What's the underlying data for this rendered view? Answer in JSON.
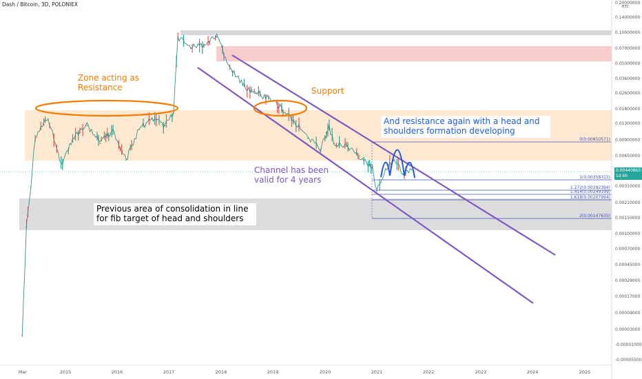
{
  "header": {
    "title": "Dash / Bitcoin, 3D, POLONIEX",
    "currency": "BTC"
  },
  "price_flag": {
    "price": "0.00440865",
    "countdown": "1d 6h",
    "color": "#26a69a"
  },
  "colors": {
    "channel": "#7e57c2",
    "ellipse": "#f57c00",
    "head_shoulders": "#1e5bd8",
    "fib_line": "#3f51b5",
    "resistance_zone": "#fde9d2",
    "consolidation_zone": "#dcdcdf",
    "top_zone": "#f9cccc",
    "top_band": "#d8d8dc",
    "candle_up": "#26a69a",
    "candle_down": "#ef5350"
  },
  "annotations": {
    "zone_resistance": "Zone acting as\nResistance",
    "support": "Support",
    "channel": "Channel has been\nvalid for 4 years",
    "head_shoulders": "And resistance again with a head and\nshoulders formation developing",
    "consolidation": "Previous area of consolidation in line\nfor fib target of head and shoulders"
  },
  "fib_levels": [
    {
      "label": "0(0.00850571)"
    },
    {
      "label": "1(0.00358315)"
    },
    {
      "label": "1.272(0.00282394)"
    },
    {
      "label": "1.414(0.00249199)"
    },
    {
      "label": "1.618(0.00207994)"
    },
    {
      "label": "2(0.00147635)"
    }
  ],
  "chart_data": {
    "type": "line",
    "title": "Dash / Bitcoin, 3D, POLONIEX",
    "scale": "log",
    "y_axis_labels": [
      "0.20000000",
      "0.14000000",
      "0.10000000",
      "0.07000000",
      "0.05000000",
      "0.03600000",
      "0.02600000",
      "0.01800000",
      "0.01300000",
      "0.00900000",
      "0.00650000",
      "0.00440865",
      "0.00310000",
      "0.00210000",
      "0.00150000",
      "0.00100000",
      "0.00070000",
      "0.00045000",
      "0.00029000",
      "0.00017000",
      "0.00009000",
      "0.00003000",
      "-0.00001000",
      "-0.00005500"
    ],
    "x_axis_labels": [
      "Mar",
      "2015",
      "2016",
      "2017",
      "2018",
      "2019",
      "2020",
      "2021",
      "2022",
      "2023",
      "2024",
      "2025"
    ],
    "xlim": [
      "2014-03",
      "2025-12"
    ],
    "series": [
      {
        "x": [
          "2014-03",
          "2014-04",
          "2014-05",
          "2014-06",
          "2014-09",
          "2014-12",
          "2015-03",
          "2015-06",
          "2015-09",
          "2015-12",
          "2016-03",
          "2016-06",
          "2016-09",
          "2016-12",
          "2017-02",
          "2017-03",
          "2017-06",
          "2017-09",
          "2017-12",
          "2018-03",
          "2018-06",
          "2018-09",
          "2018-12",
          "2019-03",
          "2019-06",
          "2019-09",
          "2019-12",
          "2020-02",
          "2020-03",
          "2020-06",
          "2020-09",
          "2020-12",
          "2021-01",
          "2021-03",
          "2021-05",
          "2021-07",
          "2021-09"
        ],
        "values": [
          0.0001,
          0.0012,
          0.003,
          0.0095,
          0.014,
          0.005,
          0.009,
          0.012,
          0.008,
          0.011,
          0.0055,
          0.011,
          0.014,
          0.012,
          0.016,
          0.09,
          0.07,
          0.075,
          0.09,
          0.045,
          0.03,
          0.025,
          0.022,
          0.018,
          0.013,
          0.009,
          0.007,
          0.012,
          0.008,
          0.0075,
          0.006,
          0.0045,
          0.0027,
          0.0045,
          0.0055,
          0.004,
          0.0044
        ]
      }
    ]
  }
}
